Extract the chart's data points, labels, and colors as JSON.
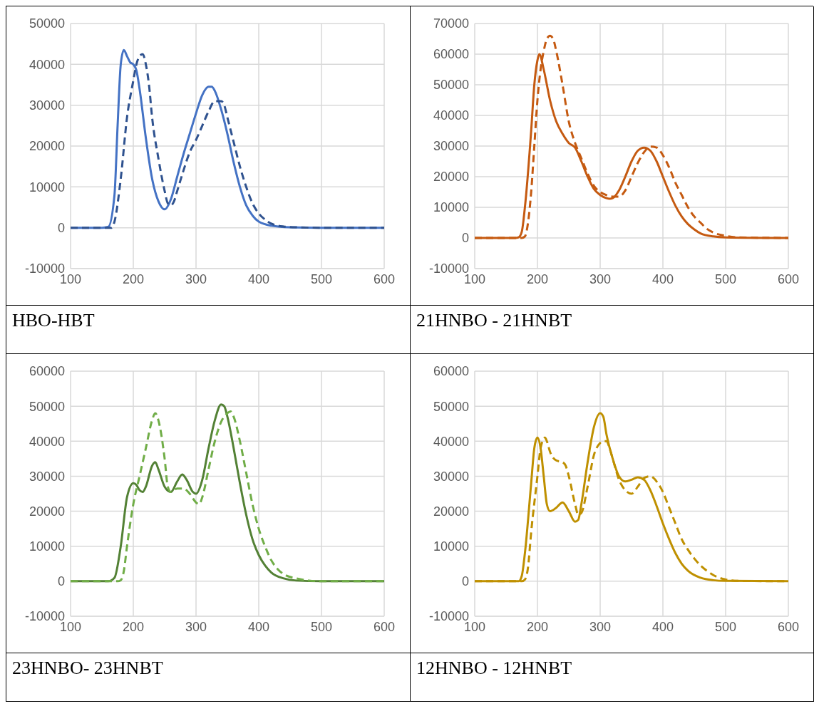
{
  "chart_data": [
    {
      "type": "line",
      "title": "HBO-HBT",
      "xlim": [
        100,
        600
      ],
      "xticks": [
        100,
        200,
        300,
        400,
        500,
        600
      ],
      "ylim": [
        -10000,
        50000
      ],
      "yticks": [
        -10000,
        0,
        10000,
        20000,
        30000,
        40000,
        50000
      ],
      "grid": true,
      "series": [
        {
          "color": "#4472c4",
          "line_style": "solid",
          "x": [
            100,
            150,
            160,
            170,
            175,
            180,
            185,
            190,
            195,
            200,
            205,
            210,
            220,
            230,
            240,
            250,
            260,
            270,
            280,
            290,
            300,
            310,
            320,
            325,
            330,
            340,
            350,
            360,
            370,
            380,
            390,
            400,
            420,
            450,
            500,
            600
          ],
          "values": [
            0,
            0,
            200,
            8000,
            25000,
            40000,
            43500,
            42000,
            40500,
            40000,
            38500,
            34000,
            22000,
            12000,
            6500,
            4500,
            7000,
            12500,
            18000,
            23000,
            28000,
            32500,
            34500,
            34500,
            33500,
            29000,
            23000,
            16000,
            10000,
            5500,
            3000,
            1500,
            500,
            100,
            0,
            0
          ]
        },
        {
          "color": "#2f528f",
          "line_style": "dashed",
          "x": [
            100,
            160,
            165,
            170,
            180,
            190,
            200,
            205,
            210,
            215,
            220,
            225,
            230,
            240,
            250,
            255,
            260,
            265,
            270,
            280,
            290,
            300,
            310,
            320,
            330,
            340,
            345,
            350,
            360,
            370,
            380,
            390,
            400,
            410,
            420,
            440,
            460,
            500,
            600
          ],
          "values": [
            0,
            0,
            0,
            1500,
            12000,
            27000,
            36000,
            40000,
            42000,
            42500,
            40000,
            35000,
            27000,
            17000,
            9000,
            6000,
            5500,
            6500,
            9000,
            14000,
            18500,
            21500,
            25000,
            28500,
            31000,
            31000,
            30000,
            27000,
            21000,
            15000,
            10000,
            6000,
            3500,
            2000,
            1000,
            300,
            100,
            0,
            0
          ]
        }
      ]
    },
    {
      "type": "line",
      "title": "21HNBO - 21HNBT",
      "xlim": [
        100,
        600
      ],
      "xticks": [
        100,
        200,
        300,
        400,
        500,
        600
      ],
      "ylim": [
        -10000,
        70000
      ],
      "yticks": [
        -10000,
        0,
        10000,
        20000,
        30000,
        40000,
        50000,
        60000,
        70000
      ],
      "grid": true,
      "series": [
        {
          "color": "#c55a11",
          "line_style": "solid",
          "x": [
            100,
            165,
            170,
            175,
            180,
            190,
            195,
            200,
            203,
            210,
            220,
            230,
            240,
            250,
            260,
            270,
            280,
            290,
            300,
            310,
            315,
            320,
            330,
            340,
            350,
            360,
            370,
            380,
            390,
            400,
            410,
            420,
            430,
            440,
            450,
            460,
            480,
            500,
            600
          ],
          "values": [
            0,
            0,
            200,
            2000,
            10000,
            35000,
            50000,
            58000,
            60000,
            55000,
            45000,
            38000,
            34000,
            31000,
            29500,
            25000,
            20000,
            16000,
            14000,
            13000,
            12800,
            13000,
            15500,
            20000,
            25000,
            28500,
            29500,
            28500,
            25000,
            20000,
            15000,
            10500,
            7000,
            4500,
            2800,
            1500,
            500,
            200,
            0
          ]
        },
        {
          "color": "#c55a11",
          "line_style": "dashed",
          "x": [
            100,
            175,
            180,
            185,
            190,
            195,
            200,
            205,
            210,
            215,
            220,
            225,
            230,
            240,
            250,
            260,
            270,
            280,
            290,
            300,
            310,
            320,
            330,
            340,
            350,
            360,
            370,
            380,
            390,
            400,
            410,
            420,
            430,
            440,
            450,
            460,
            470,
            480,
            500,
            520,
            600
          ],
          "values": [
            0,
            0,
            500,
            5000,
            15000,
            30000,
            45000,
            55000,
            61000,
            65000,
            66000,
            65000,
            61000,
            50000,
            38000,
            31000,
            26000,
            21000,
            17000,
            15000,
            14000,
            13500,
            13500,
            15500,
            20000,
            24500,
            28000,
            29800,
            29500,
            27000,
            23000,
            18000,
            14000,
            10000,
            7000,
            5000,
            3000,
            1800,
            700,
            200,
            0
          ]
        }
      ]
    },
    {
      "type": "line",
      "title": "23HNBO- 23HNBT",
      "xlim": [
        100,
        600
      ],
      "xticks": [
        100,
        200,
        300,
        400,
        500,
        600
      ],
      "ylim": [
        -10000,
        60000
      ],
      "yticks": [
        -10000,
        0,
        10000,
        20000,
        30000,
        40000,
        50000,
        60000
      ],
      "grid": true,
      "series": [
        {
          "color": "#538135",
          "line_style": "solid",
          "x": [
            100,
            160,
            170,
            180,
            190,
            200,
            205,
            210,
            215,
            220,
            230,
            235,
            240,
            250,
            260,
            270,
            278,
            285,
            295,
            300,
            310,
            320,
            330,
            340,
            345,
            350,
            360,
            370,
            380,
            390,
            400,
            410,
            420,
            440,
            460,
            500,
            600
          ],
          "values": [
            0,
            0,
            1000,
            10000,
            24000,
            28000,
            27500,
            26000,
            25500,
            27000,
            33000,
            34000,
            32000,
            27000,
            25500,
            28500,
            30500,
            29000,
            25500,
            25000,
            29000,
            38000,
            46000,
            50500,
            50000,
            47000,
            38000,
            28000,
            19000,
            12000,
            7500,
            4500,
            2500,
            800,
            200,
            0,
            0
          ]
        },
        {
          "color": "#70ad47",
          "line_style": "dashed",
          "x": [
            100,
            175,
            180,
            185,
            190,
            200,
            210,
            220,
            230,
            235,
            240,
            250,
            255,
            260,
            270,
            280,
            290,
            300,
            305,
            310,
            320,
            330,
            340,
            350,
            355,
            360,
            370,
            380,
            390,
            400,
            410,
            420,
            430,
            440,
            460,
            480,
            500,
            600
          ],
          "values": [
            0,
            0,
            300,
            3000,
            10000,
            22000,
            30000,
            38000,
            46000,
            48000,
            46000,
            35000,
            27000,
            25500,
            26500,
            26500,
            25000,
            22500,
            22000,
            24000,
            32000,
            40000,
            45500,
            48000,
            48500,
            47000,
            40000,
            31000,
            22000,
            15000,
            10000,
            6000,
            3500,
            2000,
            800,
            200,
            0,
            0
          ]
        }
      ]
    },
    {
      "type": "line",
      "title": "12HNBO - 12HNBT",
      "xlim": [
        100,
        600
      ],
      "xticks": [
        100,
        200,
        300,
        400,
        500,
        600
      ],
      "ylim": [
        -10000,
        60000
      ],
      "yticks": [
        -10000,
        0,
        10000,
        20000,
        30000,
        40000,
        50000,
        60000
      ],
      "grid": true,
      "series": [
        {
          "color": "#bf9000",
          "line_style": "solid",
          "x": [
            100,
            170,
            175,
            180,
            190,
            195,
            200,
            205,
            210,
            215,
            220,
            230,
            240,
            250,
            260,
            265,
            270,
            280,
            290,
            300,
            305,
            310,
            320,
            330,
            340,
            350,
            360,
            370,
            380,
            390,
            400,
            410,
            420,
            430,
            440,
            460,
            480,
            500,
            600
          ],
          "values": [
            0,
            0,
            1500,
            8000,
            28000,
            38000,
            41000,
            38000,
            30000,
            22000,
            20000,
            21000,
            22500,
            20000,
            17000,
            17500,
            22000,
            34000,
            44000,
            48000,
            47000,
            42000,
            35000,
            30000,
            28500,
            29000,
            29700,
            29000,
            26000,
            21500,
            16500,
            12000,
            8000,
            5000,
            3000,
            1000,
            300,
            100,
            0
          ]
        },
        {
          "color": "#bf9000",
          "line_style": "dashed",
          "x": [
            100,
            175,
            180,
            185,
            190,
            200,
            205,
            212,
            215,
            220,
            230,
            240,
            245,
            250,
            260,
            265,
            270,
            280,
            290,
            300,
            305,
            310,
            315,
            320,
            330,
            340,
            350,
            360,
            370,
            380,
            385,
            390,
            400,
            410,
            420,
            430,
            440,
            450,
            460,
            470,
            480,
            490,
            500,
            520,
            600
          ],
          "values": [
            0,
            0,
            500,
            4000,
            14000,
            30000,
            38000,
            41000,
            40000,
            37000,
            34500,
            34000,
            33000,
            30000,
            22000,
            19000,
            19500,
            27000,
            36000,
            39500,
            40000,
            40000,
            38000,
            35000,
            29000,
            26000,
            25000,
            27000,
            29500,
            30000,
            29500,
            28500,
            25500,
            21000,
            16500,
            12000,
            9000,
            6500,
            4500,
            3000,
            1800,
            1000,
            500,
            100,
            0
          ]
        }
      ]
    }
  ]
}
